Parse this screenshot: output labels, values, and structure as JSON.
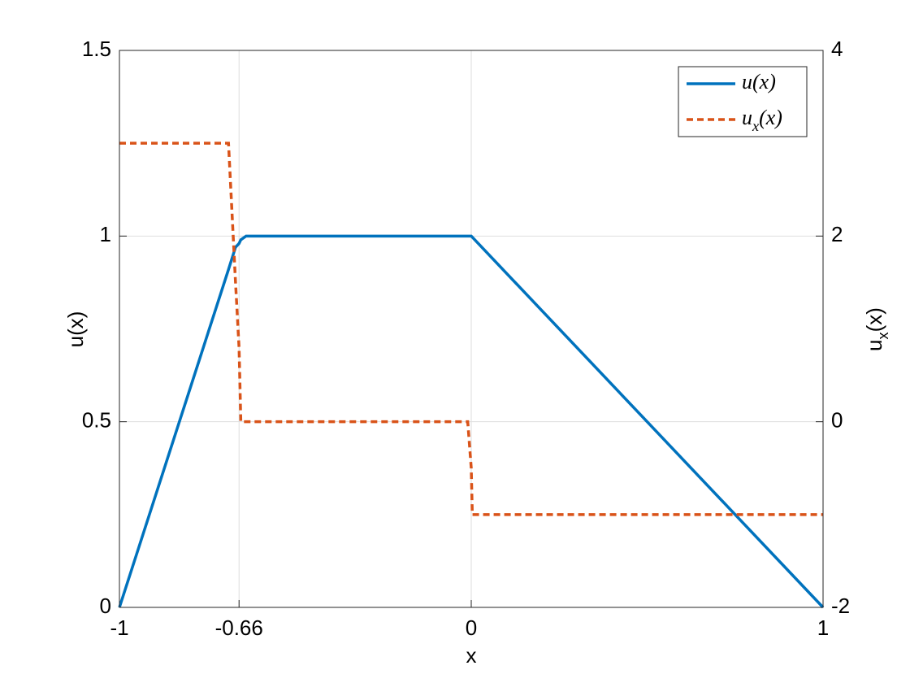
{
  "chart_data": {
    "type": "line",
    "xlabel": "x",
    "ylabel": "u(x)",
    "y2label": "u_x(x)",
    "x": [
      -1,
      -0.69,
      -0.67,
      -0.66,
      -0.655,
      -0.64,
      -0.01,
      0,
      0.003,
      1
    ],
    "xlim": [
      -1,
      1
    ],
    "xticks": [
      -1,
      -0.66,
      0,
      1
    ],
    "ylim": [
      0,
      1.5
    ],
    "yticks": [
      0,
      0.5,
      1,
      1.5
    ],
    "y2lim": [
      -2,
      4
    ],
    "y2ticks": [
      -2,
      0,
      2,
      4
    ],
    "grid": true,
    "legend": "upper right",
    "series": [
      {
        "name": "u(x)",
        "color": "#0072bd",
        "style": "solid",
        "values": [
          0,
          0.91,
          0.97,
          0.98,
          0.99,
          1,
          1,
          1,
          0.997,
          0
        ]
      },
      {
        "name": "u_x(x)",
        "color": "#d95319",
        "style": "dashed",
        "axis": "y2",
        "values": [
          3,
          3,
          1.5,
          0.8,
          0,
          0,
          0,
          -0.5,
          -1,
          -1
        ]
      }
    ]
  }
}
